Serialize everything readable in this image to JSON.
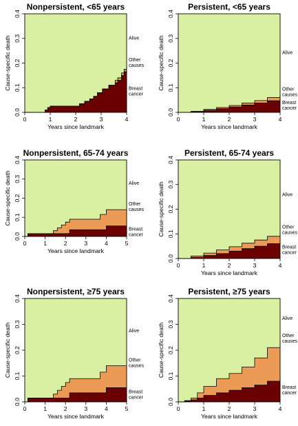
{
  "colors": {
    "alive": "#d9f0a3",
    "other": "#ec9b57",
    "breast": "#6b0000",
    "line": "#000000"
  },
  "chart_data": [
    {
      "type": "area",
      "title": "Nonpersistent, <65 years",
      "xlabel": "Years since landmark",
      "ylabel": "Cause-specific death",
      "xlim": [
        0,
        4
      ],
      "ylim": [
        0,
        0.4
      ],
      "xticks": [
        "0",
        "1",
        "2",
        "3",
        "4"
      ],
      "yticks": [
        "0.0",
        "0.1",
        "0.2",
        "0.3",
        "0.4"
      ],
      "region_labels": [
        [
          "Alive"
        ],
        [
          "Other",
          "causes"
        ],
        [
          "Breast",
          "cancer"
        ]
      ],
      "x": [
        0,
        0.8,
        0.9,
        1.0,
        2.0,
        2.15,
        2.35,
        2.55,
        2.7,
        2.85,
        3.05,
        3.3,
        3.55,
        3.65,
        3.8,
        3.9,
        4.0
      ],
      "breast_cancer": [
        0,
        0.01,
        0.02,
        0.025,
        0.025,
        0.035,
        0.045,
        0.055,
        0.065,
        0.08,
        0.095,
        0.11,
        0.12,
        0.13,
        0.15,
        0.165,
        0.17
      ],
      "other_causes": [
        0,
        0.01,
        0.02,
        0.025,
        0.025,
        0.035,
        0.045,
        0.055,
        0.065,
        0.08,
        0.095,
        0.11,
        0.13,
        0.14,
        0.16,
        0.175,
        0.19
      ]
    },
    {
      "type": "area",
      "title": "Persistent, <65 years",
      "xlabel": "Years since landmark",
      "ylabel": "Cause-specific death",
      "xlim": [
        0,
        4
      ],
      "ylim": [
        0,
        0.4
      ],
      "xticks": [
        "0",
        "1",
        "2",
        "3",
        "4"
      ],
      "yticks": [
        "0.0",
        "0.1",
        "0.2",
        "0.3",
        "0.4"
      ],
      "region_labels": [
        [
          "Alive"
        ],
        [
          "Other",
          "causes"
        ],
        [
          "Breast",
          "cancer"
        ]
      ],
      "x": [
        0,
        0.5,
        1.0,
        1.5,
        2.0,
        2.5,
        3.0,
        3.5,
        4.0
      ],
      "breast_cancer": [
        0,
        0.002,
        0.008,
        0.015,
        0.022,
        0.03,
        0.038,
        0.047,
        0.057
      ],
      "other_causes": [
        0,
        0.004,
        0.012,
        0.02,
        0.028,
        0.038,
        0.048,
        0.06,
        0.072
      ]
    },
    {
      "type": "area",
      "title": "Nonpersistent, 65-74 years",
      "xlabel": "Years since landmark",
      "ylabel": "Cause-specific death",
      "xlim": [
        0,
        5
      ],
      "ylim": [
        0,
        0.4
      ],
      "xticks": [
        "0",
        "1",
        "2",
        "3",
        "4",
        "5"
      ],
      "yticks": [
        "0.0",
        "0.1",
        "0.2",
        "0.3",
        "0.4"
      ],
      "region_labels": [
        [
          "Alive"
        ],
        [
          "Other",
          "causes"
        ],
        [
          "Breast",
          "cancer"
        ]
      ],
      "x": [
        0,
        0.15,
        1.4,
        1.6,
        1.8,
        2.0,
        2.2,
        3.7,
        4.0,
        5.0
      ],
      "breast_cancer": [
        0,
        0.015,
        0.015,
        0.015,
        0.015,
        0.015,
        0.035,
        0.035,
        0.055,
        0.055
      ],
      "other_causes": [
        0,
        0.015,
        0.03,
        0.045,
        0.06,
        0.075,
        0.09,
        0.115,
        0.14,
        0.14
      ]
    },
    {
      "type": "area",
      "title": "Persistent, 65-74 years",
      "xlabel": "Years since landmark",
      "ylabel": "Cause-specific death",
      "xlim": [
        0,
        4
      ],
      "ylim": [
        0,
        0.4
      ],
      "xticks": [
        "0",
        "1",
        "2",
        "3",
        "4"
      ],
      "yticks": [
        "0.0",
        "0.1",
        "0.2",
        "0.3",
        "0.4"
      ],
      "region_labels": [
        [
          "Alive"
        ],
        [
          "Other",
          "causes"
        ],
        [
          "Breast",
          "cancer"
        ]
      ],
      "x": [
        0,
        0.5,
        1.0,
        1.5,
        2.0,
        2.5,
        3.0,
        3.5,
        4.0
      ],
      "breast_cancer": [
        0,
        0.004,
        0.012,
        0.02,
        0.03,
        0.04,
        0.05,
        0.06,
        0.07
      ],
      "other_causes": [
        0,
        0.01,
        0.022,
        0.035,
        0.048,
        0.062,
        0.075,
        0.09,
        0.105
      ]
    },
    {
      "type": "area",
      "title": "Nonpersistent, ≥75 years",
      "xlabel": "Years since landmark",
      "ylabel": "Cause-specific death",
      "xlim": [
        0,
        5
      ],
      "ylim": [
        0,
        0.4
      ],
      "xticks": [
        "0",
        "1",
        "2",
        "3",
        "4",
        "5"
      ],
      "yticks": [
        "0.0",
        "0.1",
        "0.2",
        "0.3",
        "0.4"
      ],
      "region_labels": [
        [
          "Alive"
        ],
        [
          "Other",
          "causes"
        ],
        [
          "Breast",
          "cancer"
        ]
      ],
      "x": [
        0,
        0.15,
        1.4,
        1.6,
        1.8,
        2.0,
        2.2,
        3.7,
        4.0,
        5.0
      ],
      "breast_cancer": [
        0,
        0.015,
        0.015,
        0.015,
        0.015,
        0.015,
        0.035,
        0.035,
        0.055,
        0.055
      ],
      "other_causes": [
        0,
        0.015,
        0.03,
        0.045,
        0.06,
        0.075,
        0.09,
        0.115,
        0.14,
        0.14
      ]
    },
    {
      "type": "area",
      "title": "Persistent, ≥75 years",
      "xlabel": "Years since landmark",
      "ylabel": "Cause-specific death",
      "xlim": [
        0,
        4
      ],
      "ylim": [
        0,
        0.4
      ],
      "xticks": [
        "0",
        "1",
        "2",
        "3",
        "4"
      ],
      "yticks": [
        "0.0",
        "0.1",
        "0.2",
        "0.3",
        "0.4"
      ],
      "region_labels": [
        [
          "Alive"
        ],
        [
          "Other",
          "causes"
        ],
        [
          "Breast",
          "cancer"
        ]
      ],
      "x": [
        0,
        0.25,
        0.5,
        0.75,
        1.0,
        1.5,
        2.0,
        2.5,
        3.0,
        3.5,
        4.0
      ],
      "breast_cancer": [
        0,
        0.003,
        0.008,
        0.015,
        0.025,
        0.035,
        0.045,
        0.055,
        0.065,
        0.08,
        0.09
      ],
      "other_causes": [
        0,
        0.005,
        0.015,
        0.035,
        0.06,
        0.09,
        0.11,
        0.135,
        0.17,
        0.21,
        0.235
      ]
    }
  ]
}
